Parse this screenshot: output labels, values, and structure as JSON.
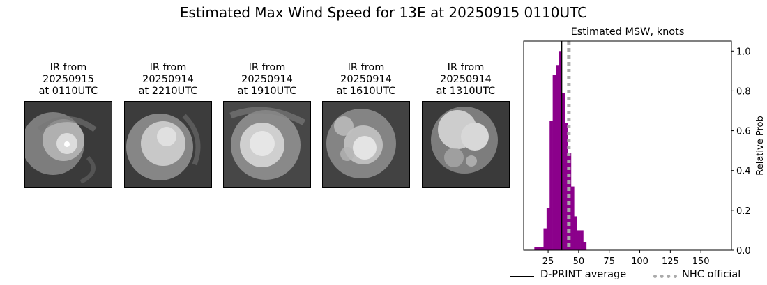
{
  "suptitle": "Estimated Max Wind Speed for 13E at 20250915 0110UTC",
  "ir_panels": [
    {
      "caption": "IR from\n20250915\nat 0110UTC"
    },
    {
      "caption": "IR from\n20250914\nat 2210UTC"
    },
    {
      "caption": "IR from\n20250914\nat 1910UTC"
    },
    {
      "caption": "IR from\n20250914\nat 1610UTC"
    },
    {
      "caption": "IR from\n20250914\nat 1310UTC"
    }
  ],
  "chart_data": {
    "type": "bar",
    "title": "Estimated MSW, knots",
    "xlabel": "",
    "ylabel": "Relative Prob",
    "xlim": [
      5,
      175
    ],
    "ylim": [
      0,
      1.05
    ],
    "xticks": [
      25,
      50,
      75,
      100,
      125,
      150
    ],
    "yticks": [
      0.0,
      0.2,
      0.4,
      0.6,
      0.8,
      1.0
    ],
    "ytick_labels": [
      "0.0",
      "0.2",
      "0.4",
      "0.6",
      "0.8",
      "1.0"
    ],
    "y_axis_side": "right",
    "bar_width": 2.5,
    "bar_color": "#8b008b",
    "bins": [
      {
        "x": 15.0,
        "y": 0.015
      },
      {
        "x": 17.5,
        "y": 0.015
      },
      {
        "x": 20.0,
        "y": 0.015
      },
      {
        "x": 22.5,
        "y": 0.11
      },
      {
        "x": 25.0,
        "y": 0.21
      },
      {
        "x": 27.5,
        "y": 0.65
      },
      {
        "x": 30.0,
        "y": 0.88
      },
      {
        "x": 32.5,
        "y": 0.93
      },
      {
        "x": 35.0,
        "y": 1.0
      },
      {
        "x": 37.5,
        "y": 0.79
      },
      {
        "x": 40.0,
        "y": 0.64
      },
      {
        "x": 42.5,
        "y": 0.49
      },
      {
        "x": 45.0,
        "y": 0.32
      },
      {
        "x": 47.5,
        "y": 0.17
      },
      {
        "x": 50.0,
        "y": 0.1
      },
      {
        "x": 52.5,
        "y": 0.1
      },
      {
        "x": 55.0,
        "y": 0.04
      }
    ],
    "dprint_average": 36,
    "nhc_official": 42,
    "dprint_color": "#000000",
    "nhc_color": "#aaaaaa",
    "legend": {
      "placement": "bottom",
      "entries": [
        "D-PRINT average",
        "NHC official"
      ]
    }
  }
}
